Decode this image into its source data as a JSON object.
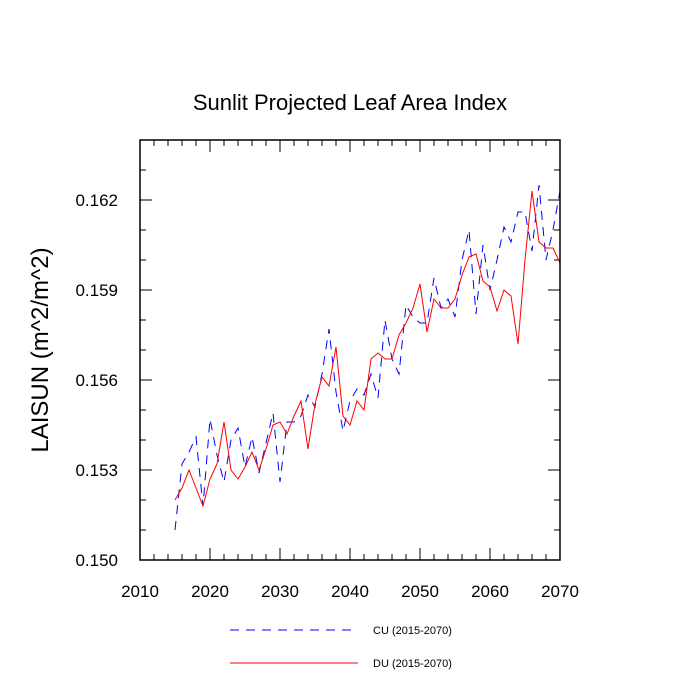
{
  "chart_data": {
    "type": "line",
    "title": "Sunlit Projected Leaf Area Index",
    "xlabel": "",
    "ylabel": "LAISUN  (m^2/m^2)",
    "xlim": [
      2010,
      2070
    ],
    "ylim": [
      0.15,
      0.164
    ],
    "x_ticks": [
      2010,
      2020,
      2030,
      2040,
      2050,
      2060,
      2070
    ],
    "x_tick_labels": [
      "2010",
      "2020",
      "2030",
      "2040",
      "2050",
      "2060",
      "2070"
    ],
    "y_ticks": [
      0.15,
      0.153,
      0.156,
      0.159,
      0.162
    ],
    "y_tick_labels": [
      "0.150",
      "0.153",
      "0.156",
      "0.159",
      "0.162"
    ],
    "x": [
      2015,
      2016,
      2017,
      2018,
      2019,
      2020,
      2021,
      2022,
      2023,
      2024,
      2025,
      2026,
      2027,
      2028,
      2029,
      2030,
      2031,
      2032,
      2033,
      2034,
      2035,
      2036,
      2037,
      2038,
      2039,
      2040,
      2041,
      2042,
      2043,
      2044,
      2045,
      2046,
      2047,
      2048,
      2049,
      2050,
      2051,
      2052,
      2053,
      2054,
      2055,
      2056,
      2057,
      2058,
      2059,
      2060,
      2061,
      2062,
      2063,
      2064,
      2065,
      2066,
      2067,
      2068,
      2069,
      2070
    ],
    "series": [
      {
        "name": "CU (2015-2070)",
        "color": "#0000ff",
        "style": "dashed",
        "values": [
          0.151,
          0.1532,
          0.1536,
          0.1541,
          0.1518,
          0.1547,
          0.1535,
          0.1526,
          0.154,
          0.1544,
          0.1531,
          0.1541,
          0.1529,
          0.1539,
          0.1549,
          0.1526,
          0.1546,
          0.1546,
          0.1548,
          0.1555,
          0.1551,
          0.1562,
          0.1577,
          0.1556,
          0.1543,
          0.1553,
          0.1557,
          0.1555,
          0.1562,
          0.1554,
          0.158,
          0.1567,
          0.1562,
          0.1585,
          0.1581,
          0.1579,
          0.1579,
          0.1594,
          0.1584,
          0.1587,
          0.1581,
          0.16,
          0.161,
          0.1582,
          0.1605,
          0.159,
          0.16,
          0.1611,
          0.1606,
          0.1616,
          0.1616,
          0.1603,
          0.1625,
          0.16,
          0.161,
          0.1623
        ]
      },
      {
        "name": "DU (2015-2070)",
        "color": "#ff0000",
        "style": "solid",
        "values": [
          0.152,
          0.1524,
          0.153,
          0.1524,
          0.1518,
          0.1527,
          0.1532,
          0.1546,
          0.153,
          0.1527,
          0.1531,
          0.1536,
          0.153,
          0.1537,
          0.1545,
          0.1546,
          0.1542,
          0.1548,
          0.1553,
          0.1537,
          0.1552,
          0.1561,
          0.1558,
          0.1571,
          0.1548,
          0.1545,
          0.1553,
          0.155,
          0.1567,
          0.1569,
          0.1567,
          0.1567,
          0.1575,
          0.1579,
          0.1584,
          0.1592,
          0.1576,
          0.1587,
          0.1584,
          0.1584,
          0.1587,
          0.1595,
          0.1601,
          0.1602,
          0.1593,
          0.1591,
          0.1583,
          0.159,
          0.1588,
          0.1572,
          0.16,
          0.1623,
          0.1606,
          0.1604,
          0.1604,
          0.1599
        ]
      }
    ],
    "legend_position": "bottom"
  }
}
